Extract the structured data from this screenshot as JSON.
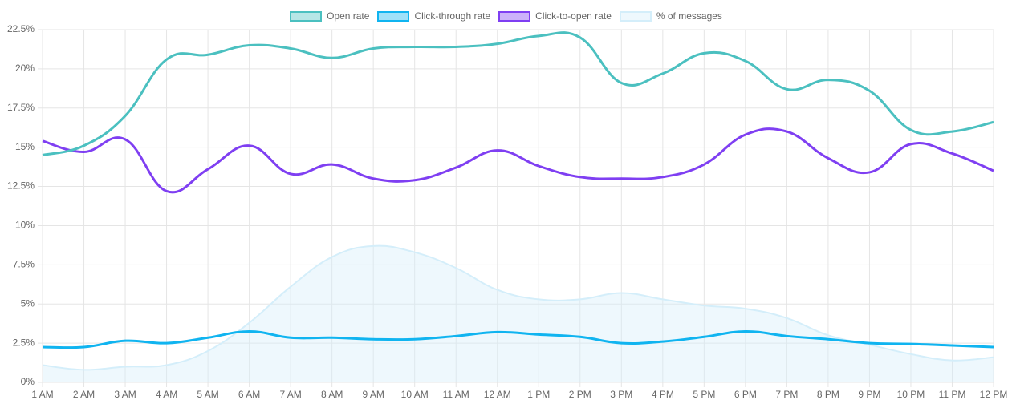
{
  "chart_data": {
    "type": "line",
    "categories": [
      "1 AM",
      "2 AM",
      "3 AM",
      "4 AM",
      "5 AM",
      "6 AM",
      "7 AM",
      "8 AM",
      "9 AM",
      "10 AM",
      "11 AM",
      "12 AM",
      "1 PM",
      "2 PM",
      "3 PM",
      "4 PM",
      "5 PM",
      "6 PM",
      "7 PM",
      "8 PM",
      "9 PM",
      "10 PM",
      "11 PM",
      "12 PM"
    ],
    "series": [
      {
        "name": "Open rate",
        "color": "#4bc0c0",
        "values": [
          14.5,
          15.1,
          17.0,
          20.6,
          20.9,
          21.5,
          21.3,
          20.7,
          21.3,
          21.4,
          21.4,
          21.6,
          22.1,
          22.0,
          19.1,
          19.7,
          21.0,
          20.5,
          18.7,
          19.3,
          18.6,
          16.1,
          16.0,
          16.6
        ]
      },
      {
        "name": "Click-through rate",
        "color": "#10b4f0",
        "values": [
          2.25,
          2.25,
          2.65,
          2.5,
          2.85,
          3.25,
          2.85,
          2.85,
          2.75,
          2.75,
          2.95,
          3.2,
          3.05,
          2.9,
          2.5,
          2.6,
          2.9,
          3.25,
          2.95,
          2.75,
          2.5,
          2.45,
          2.35,
          2.25
        ]
      },
      {
        "name": "Click-to-open rate",
        "color": "#7f3ff2",
        "values": [
          15.4,
          14.7,
          15.5,
          12.2,
          13.6,
          15.1,
          13.3,
          13.9,
          13.0,
          12.9,
          13.7,
          14.8,
          13.8,
          13.1,
          13.0,
          13.1,
          13.9,
          15.8,
          16.0,
          14.3,
          13.4,
          15.2,
          14.6,
          13.5
        ]
      },
      {
        "name": "% of messages",
        "color": "#d4eefa",
        "fill": true,
        "values": [
          1.1,
          0.8,
          1.0,
          1.1,
          2.0,
          3.8,
          6.1,
          8.0,
          8.7,
          8.3,
          7.3,
          5.9,
          5.3,
          5.3,
          5.7,
          5.3,
          4.9,
          4.7,
          4.1,
          3.0,
          2.4,
          1.8,
          1.4,
          1.6
        ]
      }
    ],
    "ylim": [
      0,
      22.5
    ],
    "yticks": [
      {
        "value": 0,
        "label": "0%"
      },
      {
        "value": 2.5,
        "label": "2.5%"
      },
      {
        "value": 5,
        "label": "5%"
      },
      {
        "value": 7.5,
        "label": "7.5%"
      },
      {
        "value": 10,
        "label": "10%"
      },
      {
        "value": 12.5,
        "label": "12.5%"
      },
      {
        "value": 15,
        "label": "15%"
      },
      {
        "value": 17.5,
        "label": "17.5%"
      },
      {
        "value": 20,
        "label": "20%"
      },
      {
        "value": 22.5,
        "label": "22.5%"
      }
    ],
    "grid": true,
    "legend": "top"
  }
}
